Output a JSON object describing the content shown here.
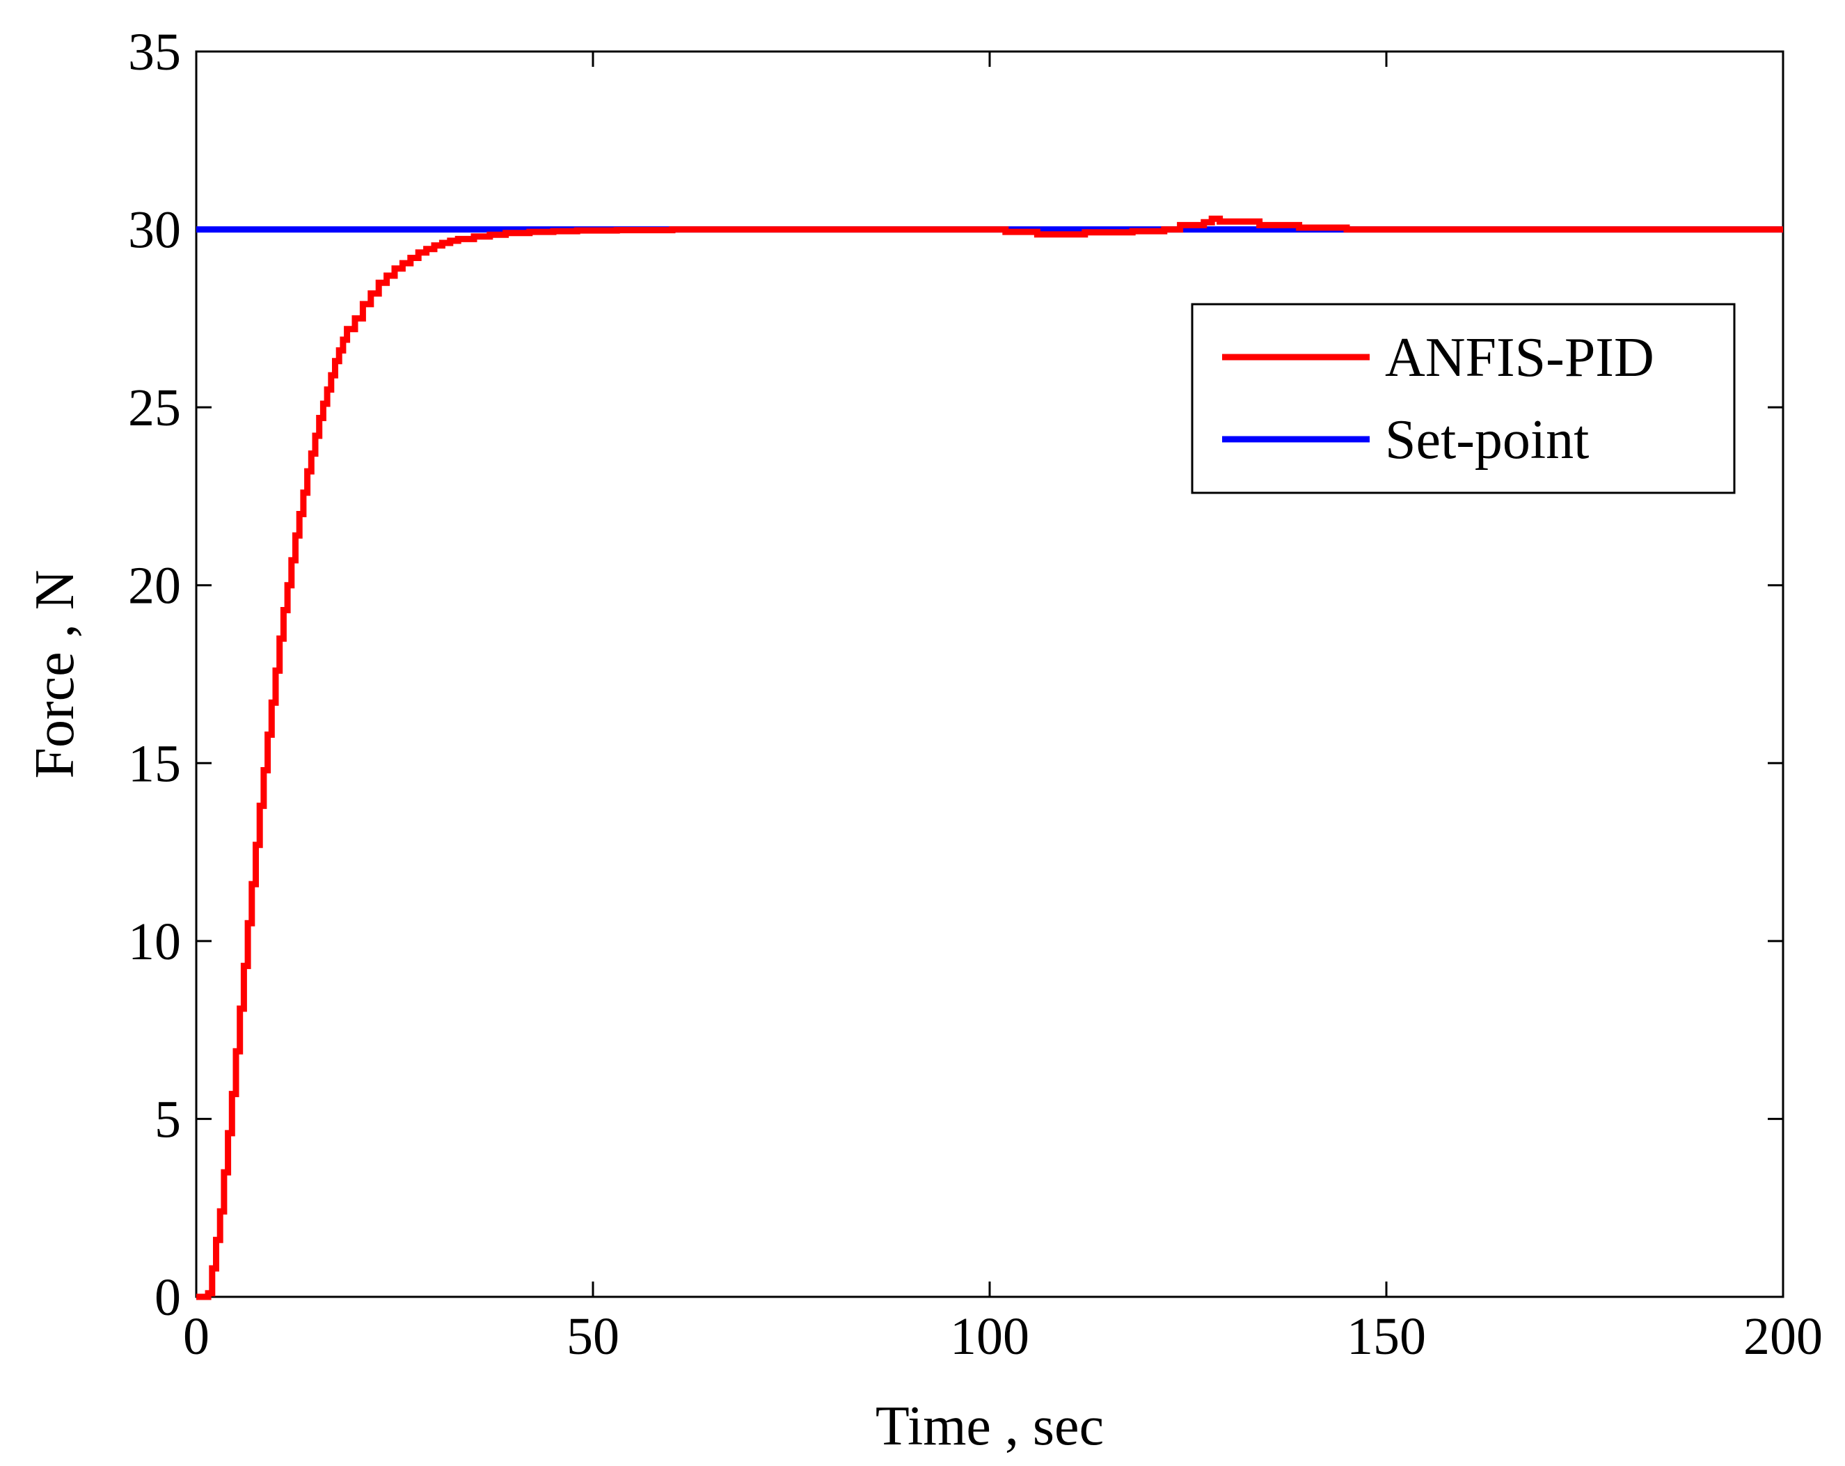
{
  "chart_data": {
    "type": "line",
    "title": "",
    "xlabel": "Time ,  sec",
    "ylabel": "Force , N",
    "xlim": [
      0,
      200
    ],
    "ylim": [
      0,
      35
    ],
    "xticks": [
      0,
      50,
      100,
      150,
      200
    ],
    "yticks": [
      0,
      5,
      10,
      15,
      20,
      25,
      30,
      35
    ],
    "xtick_labels": [
      "0",
      "50",
      "100",
      "150",
      "200"
    ],
    "ytick_labels": [
      "0",
      "5",
      "10",
      "15",
      "20",
      "25",
      "30",
      "35"
    ],
    "grid": false,
    "legend_position": "top-right",
    "series": [
      {
        "name": "ANFIS-PID",
        "color": "#ff0000",
        "step": true,
        "points": [
          [
            0,
            0
          ],
          [
            1.5,
            0.1
          ],
          [
            2,
            0.8
          ],
          [
            2.5,
            1.6
          ],
          [
            3,
            2.4
          ],
          [
            3.5,
            3.5
          ],
          [
            4,
            4.6
          ],
          [
            4.5,
            5.7
          ],
          [
            5,
            6.9
          ],
          [
            5.5,
            8.1
          ],
          [
            6,
            9.3
          ],
          [
            6.5,
            10.5
          ],
          [
            7,
            11.6
          ],
          [
            7.5,
            12.7
          ],
          [
            8,
            13.8
          ],
          [
            8.5,
            14.8
          ],
          [
            9,
            15.8
          ],
          [
            9.5,
            16.7
          ],
          [
            10,
            17.6
          ],
          [
            10.5,
            18.5
          ],
          [
            11,
            19.3
          ],
          [
            11.5,
            20.0
          ],
          [
            12,
            20.7
          ],
          [
            12.5,
            21.4
          ],
          [
            13,
            22.0
          ],
          [
            13.5,
            22.6
          ],
          [
            14,
            23.2
          ],
          [
            14.5,
            23.7
          ],
          [
            15,
            24.2
          ],
          [
            15.5,
            24.7
          ],
          [
            16,
            25.1
          ],
          [
            16.5,
            25.5
          ],
          [
            17,
            25.9
          ],
          [
            17.5,
            26.3
          ],
          [
            18,
            26.6
          ],
          [
            18.5,
            26.9
          ],
          [
            19,
            27.2
          ],
          [
            20,
            27.5
          ],
          [
            21,
            27.9
          ],
          [
            22,
            28.2
          ],
          [
            23,
            28.5
          ],
          [
            24,
            28.7
          ],
          [
            25,
            28.9
          ],
          [
            26,
            29.05
          ],
          [
            27,
            29.2
          ],
          [
            28,
            29.35
          ],
          [
            29,
            29.45
          ],
          [
            30,
            29.55
          ],
          [
            31,
            29.62
          ],
          [
            32,
            29.68
          ],
          [
            33,
            29.73
          ],
          [
            35,
            29.8
          ],
          [
            37,
            29.85
          ],
          [
            39,
            29.9
          ],
          [
            42,
            29.93
          ],
          [
            45,
            29.95
          ],
          [
            48,
            29.97
          ],
          [
            53,
            29.98
          ],
          [
            60,
            30.0
          ],
          [
            100,
            30.0
          ],
          [
            102,
            29.93
          ],
          [
            106,
            29.86
          ],
          [
            112,
            29.92
          ],
          [
            118,
            29.95
          ],
          [
            122,
            30.0
          ],
          [
            124,
            30.12
          ],
          [
            127,
            30.2
          ],
          [
            128,
            30.3
          ],
          [
            129,
            30.22
          ],
          [
            134,
            30.12
          ],
          [
            139,
            30.05
          ],
          [
            145,
            30.0
          ],
          [
            200,
            30.0
          ]
        ]
      },
      {
        "name": "Set-point",
        "color": "#0000ff",
        "step": false,
        "points": [
          [
            0,
            30
          ],
          [
            200,
            30
          ]
        ]
      }
    ]
  }
}
